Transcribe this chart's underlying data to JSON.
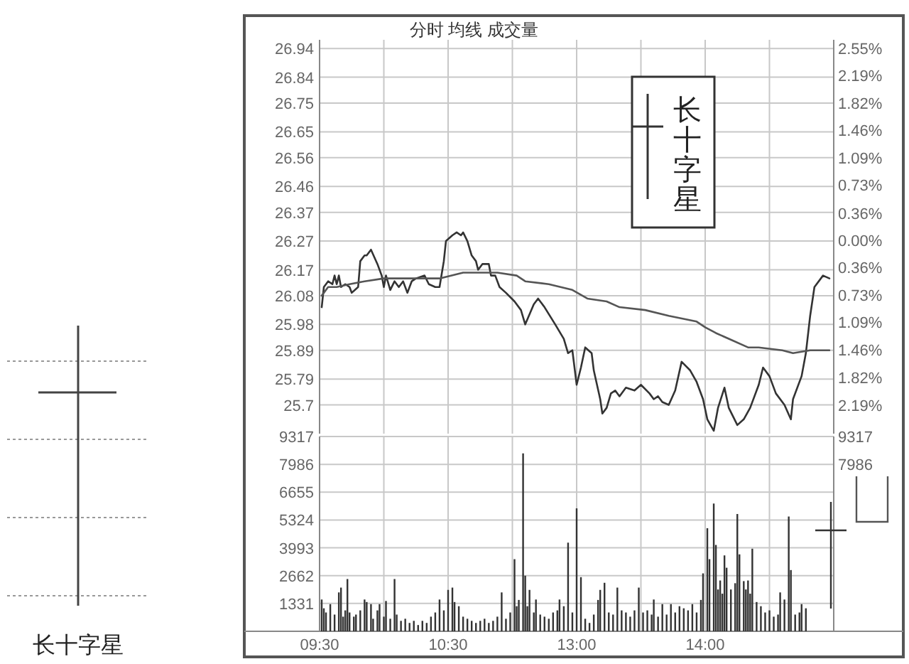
{
  "chart_data": [
    {
      "type": "line",
      "title": "分时 均线 成交量",
      "categories": [
        null,
        null,
        null,
        null,
        null,
        null,
        null,
        null,
        null,
        null,
        null,
        null,
        null,
        null,
        null,
        null,
        null,
        null,
        null,
        null,
        null,
        null,
        null,
        null,
        null,
        null,
        null,
        null,
        null,
        null,
        null,
        null,
        null,
        null,
        null,
        null,
        null,
        null,
        null,
        null,
        null,
        null,
        null,
        null,
        null,
        null,
        null,
        null,
        null,
        null,
        null,
        null,
        null,
        null,
        null,
        null,
        null,
        null,
        null,
        null,
        null,
        null,
        null,
        null,
        null,
        null,
        null,
        null,
        null,
        null,
        null,
        null,
        null,
        null,
        null,
        null,
        null,
        null,
        null,
        null,
        null,
        null,
        null,
        null,
        null,
        null,
        null,
        null,
        null,
        null,
        null,
        null,
        null,
        null,
        null,
        null,
        null,
        null,
        null,
        null,
        null,
        null,
        null,
        null,
        null,
        null,
        null,
        null,
        null,
        null,
        null,
        null,
        null,
        null,
        null,
        null,
        null,
        null,
        null,
        null,
        null,
        null,
        null,
        null,
        null,
        null,
        null,
        null,
        null,
        null,
        null,
        null,
        null,
        null,
        null,
        null,
        null,
        null,
        null,
        null,
        null,
        null,
        null,
        null,
        null,
        null,
        null,
        null,
        null,
        null,
        null,
        null,
        null,
        null,
        null,
        null,
        null,
        null,
        null,
        null,
        null,
        null,
        null,
        null,
        null,
        null,
        null,
        null,
        null,
        null,
        null,
        null,
        null,
        null,
        null,
        null,
        null,
        null,
        null,
        null,
        null,
        null,
        null,
        null,
        null,
        null,
        null,
        null,
        null,
        null,
        null,
        null,
        null,
        null,
        null,
        null,
        null,
        null,
        null,
        null,
        null,
        null,
        null,
        null,
        null,
        null,
        null,
        null,
        null,
        null,
        null,
        null,
        null,
        null,
        null,
        null,
        null,
        null,
        null,
        null,
        null,
        null,
        null,
        null,
        null,
        null,
        null,
        null,
        null,
        null,
        null,
        null,
        null,
        null,
        null,
        null,
        null,
        null,
        null,
        null,
        null
      ],
      "ylim": [
        25.6,
        26.97
      ],
      "yticks": [
        26.94,
        26.84,
        26.75,
        26.65,
        26.56,
        26.46,
        26.37,
        26.27,
        26.17,
        26.08,
        25.98,
        25.89,
        25.79,
        25.7
      ],
      "y2lim": [
        -2.57,
        2.66
      ],
      "y2ticks": [
        {
          "value": 2.55,
          "label": "2.55%"
        },
        {
          "value": 2.19,
          "label": "2.19%"
        },
        {
          "value": 1.82,
          "label": "1.82%"
        },
        {
          "value": 1.46,
          "label": "1.46%"
        },
        {
          "value": 1.09,
          "label": "1.09%"
        },
        {
          "value": 0.73,
          "label": "0.73%"
        },
        {
          "value": 0.36,
          "label": "0.36%"
        },
        {
          "value": 0,
          "label": "0.00%"
        },
        {
          "value": -0.36,
          "label": "0.36%"
        },
        {
          "value": -0.73,
          "label": "0.73%"
        },
        {
          "value": -1.09,
          "label": "1.09%"
        },
        {
          "value": -1.46,
          "label": "1.46%"
        },
        {
          "value": -1.82,
          "label": "1.82%"
        },
        {
          "value": -2.19,
          "label": "2.19%"
        }
      ],
      "tick_labels": "y",
      "grid": true,
      "annotations": [
        "长十字星",
        "长十字星"
      ],
      "series": [
        {
          "color": "#333333",
          "values": [
            null,
            26.04,
            26.11,
            null,
            26.13,
            null,
            26.12,
            26.15,
            26.12,
            26.15,
            26.11,
            null,
            26.12,
            null,
            26.11,
            26.09,
            null,
            null,
            26.11,
            26.2,
            null,
            26.22,
            26.22,
            null,
            26.24,
            null,
            null,
            26.19,
            null,
            26.15,
            26.11,
            26.15,
            null,
            26.1,
            null,
            26.13,
            null,
            26.11,
            null,
            26.13,
            null,
            26.09,
            null,
            26.13,
            null,
            26.14,
            null,
            null,
            null,
            26.15,
            null,
            26.12,
            null,
            null,
            26.11,
            null,
            26.11,
            null,
            26.2,
            26.27,
            null,
            null,
            26.29,
            null,
            26.3,
            null,
            26.29,
            26.3,
            null,
            26.27,
            null,
            26.22,
            null,
            26.2,
            26.17,
            null,
            26.19,
            null,
            null,
            26.19,
            26.15,
            null,
            26.15,
            null,
            26.11,
            null,
            null,
            26.09,
            null,
            null,
            null,
            26.06,
            null,
            null,
            26.03,
            null,
            25.98,
            null,
            null,
            null,
            26.05,
            null,
            26.07,
            null,
            null,
            26.04,
            null,
            null,
            null,
            null,
            25.98,
            null,
            null,
            null,
            25.93,
            null,
            25.88,
            null,
            25.89,
            null,
            25.77,
            null,
            25.83,
            null,
            25.9,
            null,
            null,
            25.88,
            25.82,
            null,
            null,
            25.72,
            25.67,
            null,
            25.69,
            null,
            25.74,
            null,
            25.75,
            null,
            25.73,
            null,
            null,
            25.76,
            null,
            null,
            null,
            25.75,
            null,
            null,
            25.77,
            null,
            null,
            null,
            25.74,
            null,
            25.72,
            null,
            25.73,
            null,
            25.71,
            null,
            null,
            25.7,
            null,
            null,
            25.75,
            null,
            null,
            25.85,
            null,
            null,
            null,
            25.82,
            null,
            null,
            25.78,
            null,
            null,
            25.72,
            null,
            25.65,
            null,
            null,
            25.61,
            null,
            25.69,
            null,
            null,
            25.76,
            null,
            25.69,
            null,
            null,
            null,
            25.63,
            null,
            null,
            25.65,
            null,
            null,
            25.69,
            null,
            null,
            null,
            25.77,
            null,
            25.83,
            null,
            null,
            25.8,
            null,
            null,
            25.74,
            null,
            null,
            null,
            25.7,
            null,
            null,
            25.65,
            25.72,
            null,
            null,
            null,
            25.8,
            null,
            25.88,
            null,
            26.01,
            null,
            26.11,
            null,
            null,
            null,
            26.15,
            null,
            null,
            26.14,
            null,
            null
          ]
        },
        {
          "color": "#555555",
          "values": [
            null,
            26.08,
            null,
            null,
            26.11,
            null,
            null,
            null,
            26.11,
            null,
            null,
            null,
            null,
            null,
            26.12,
            null,
            null,
            null,
            null,
            null,
            null,
            26.13,
            null,
            null,
            null,
            null,
            null,
            null,
            null,
            null,
            26.14,
            null,
            null,
            null,
            null,
            null,
            null,
            null,
            null,
            null,
            null,
            null,
            null,
            26.14,
            null,
            null,
            null,
            null,
            null,
            null,
            null,
            null,
            null,
            null,
            null,
            null,
            26.14,
            null,
            null,
            null,
            null,
            null,
            null,
            null,
            null,
            null,
            null,
            26.16,
            null,
            null,
            null,
            null,
            null,
            null,
            null,
            null,
            null,
            null,
            null,
            null,
            null,
            null,
            null,
            26.16,
            null,
            null,
            null,
            null,
            null,
            null,
            null,
            null,
            26.15,
            null,
            null,
            null,
            26.13,
            null,
            null,
            null,
            null,
            null,
            null,
            null,
            null,
            null,
            null,
            26.12,
            null,
            null,
            null,
            null,
            null,
            null,
            null,
            null,
            null,
            null,
            26.1,
            null,
            null,
            null,
            null,
            null,
            null,
            26.07,
            null,
            null,
            null,
            null,
            null,
            null,
            null,
            null,
            26.06,
            null,
            null,
            null,
            null,
            null,
            26.04,
            null,
            null,
            null,
            null,
            null,
            null,
            null,
            null,
            null,
            null,
            null,
            26.03,
            null,
            null,
            null,
            null,
            null,
            null,
            null,
            null,
            null,
            null,
            26.01,
            null,
            null,
            null,
            null,
            null,
            null,
            null,
            null,
            null,
            null,
            null,
            null,
            25.99,
            null,
            null,
            null,
            25.97,
            null,
            null,
            null,
            null,
            25.95,
            null,
            null,
            null,
            null,
            null,
            25.93,
            null,
            null,
            null,
            null,
            null,
            null,
            null,
            null,
            25.9,
            null,
            null,
            null,
            null,
            25.9,
            null,
            null,
            null,
            null,
            null,
            null,
            null,
            null,
            null,
            null,
            25.89,
            null,
            null,
            null,
            null,
            25.88,
            null,
            null,
            null,
            null,
            null,
            null,
            null,
            25.89,
            null,
            null,
            null,
            null,
            null,
            null,
            null,
            null,
            25.89,
            null,
            null
          ]
        }
      ]
    },
    {
      "type": "bar",
      "categories": [
        "09:30",
        null,
        null,
        null,
        null,
        null,
        null,
        null,
        null,
        null,
        null,
        null,
        null,
        null,
        null,
        null,
        null,
        null,
        null,
        null,
        null,
        null,
        null,
        null,
        null,
        null,
        null,
        null,
        null,
        null,
        null,
        null,
        null,
        null,
        null,
        null,
        null,
        null,
        null,
        null,
        null,
        null,
        null,
        null,
        null,
        null,
        null,
        null,
        null,
        null,
        null,
        null,
        null,
        null,
        null,
        null,
        null,
        null,
        null,
        null,
        "10:30",
        null,
        null,
        null,
        null,
        null,
        null,
        null,
        null,
        null,
        null,
        null,
        null,
        null,
        null,
        null,
        null,
        null,
        null,
        null,
        null,
        null,
        null,
        null,
        null,
        null,
        null,
        null,
        null,
        null,
        null,
        null,
        null,
        null,
        null,
        null,
        null,
        null,
        null,
        null,
        null,
        null,
        null,
        null,
        null,
        null,
        null,
        null,
        null,
        null,
        null,
        null,
        null,
        null,
        null,
        null,
        null,
        null,
        null,
        null,
        "13:00",
        null,
        null,
        null,
        null,
        null,
        null,
        null,
        null,
        null,
        null,
        null,
        null,
        null,
        null,
        null,
        null,
        null,
        null,
        null,
        null,
        null,
        null,
        null,
        null,
        null,
        null,
        null,
        null,
        null,
        null,
        null,
        null,
        null,
        null,
        null,
        null,
        null,
        null,
        null,
        null,
        null,
        null,
        null,
        null,
        null,
        null,
        null,
        null,
        null,
        null,
        null,
        null,
        null,
        null,
        null,
        null,
        null,
        null,
        null,
        "14:00",
        null,
        null,
        null,
        null,
        null,
        null,
        null,
        null,
        null,
        null,
        null,
        null,
        null,
        null,
        null,
        null,
        null,
        null,
        null,
        null,
        null,
        null,
        null,
        null,
        null,
        null,
        null,
        null,
        null,
        null,
        null,
        null,
        null,
        null,
        null,
        null,
        null,
        null,
        null,
        null,
        null,
        null,
        null,
        null,
        null,
        null,
        null,
        null,
        null,
        null,
        null,
        null,
        null,
        null,
        null,
        null,
        null,
        null,
        null,
        null
      ],
      "ylim": [
        0,
        9317
      ],
      "yticks": [
        1331,
        2662,
        3993,
        5324,
        6655,
        7986,
        9317
      ],
      "y2lim": [
        0,
        9317
      ],
      "y2ticks": [
        7986,
        9317
      ],
      "grid": true,
      "series": [
        {
          "color": "#333333",
          "values": [
            null,
            1520,
            1100,
            900,
            null,
            1300,
            null,
            800,
            null,
            1860,
            2090,
            700,
            1000,
            2500,
            900,
            null,
            700,
            800,
            null,
            1000,
            null,
            1520,
            1400,
            null,
            1300,
            600,
            null,
            1000,
            1300,
            null,
            700,
            1450,
            null,
            600,
            null,
            2500,
            800,
            null,
            500,
            null,
            600,
            null,
            400,
            null,
            500,
            null,
            300,
            null,
            500,
            null,
            400,
            null,
            700,
            null,
            900,
            null,
            1520,
            null,
            1000,
            null,
            1980,
            null,
            2090,
            1400,
            null,
            1200,
            null,
            700,
            null,
            600,
            null,
            500,
            null,
            400,
            null,
            500,
            null,
            600,
            null,
            400,
            null,
            500,
            null,
            700,
            null,
            1860,
            null,
            600,
            null,
            900,
            null,
            3450,
            1200,
            1500,
            null,
            8510,
            2660,
            1200,
            1980,
            null,
            900,
            1520,
            null,
            800,
            null,
            700,
            null,
            600,
            null,
            900,
            null,
            1000,
            1520,
            null,
            1200,
            null,
            4240,
            null,
            900,
            null,
            5880,
            null,
            2590,
            null,
            600,
            null,
            400,
            null,
            800,
            null,
            1500,
            1980,
            null,
            2320,
            null,
            900,
            null,
            800,
            null,
            2090,
            null,
            1000,
            null,
            900,
            null,
            700,
            null,
            1000,
            null,
            2090,
            null,
            900,
            null,
            1000,
            null,
            800,
            1520,
            null,
            700,
            null,
            1300,
            null,
            800,
            null,
            1300,
            null,
            900,
            null,
            1200,
            null,
            1100,
            null,
            1000,
            null,
            1300,
            null,
            900,
            null,
            1500,
            2770,
            null,
            4930,
            3450,
            null,
            6110,
            4130,
            2000,
            2430,
            1800,
            3630,
            3040,
            null,
            2000,
            null,
            2300,
            5610,
            3680,
            null,
            2400,
            2000,
            2430,
            1800,
            3950,
            null,
            1400,
            null,
            1200,
            null,
            900,
            null,
            1000,
            null,
            700,
            null,
            800,
            1860,
            null,
            1520,
            null,
            5490,
            2930,
            null,
            800,
            null,
            900,
            1300,
            null,
            1100,
            null,
            null,
            null,
            null,
            null,
            null,
            null,
            null,
            null,
            null,
            null,
            null,
            null
          ]
        }
      ]
    }
  ]
}
